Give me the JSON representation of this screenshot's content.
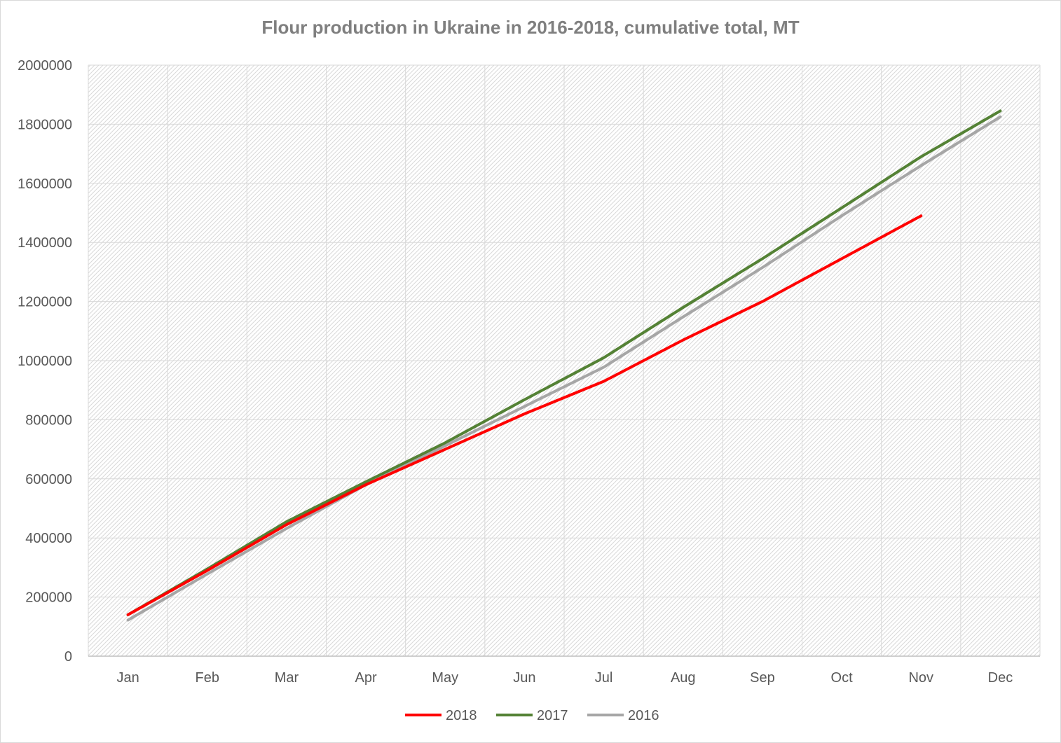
{
  "chart_data": {
    "type": "line",
    "title": "Flour production in Ukraine in 2016-2018, cumulative total, MT",
    "xlabel": "",
    "ylabel": "",
    "categories": [
      "Jan",
      "Feb",
      "Mar",
      "Apr",
      "May",
      "Jun",
      "Jul",
      "Aug",
      "Sep",
      "Oct",
      "Nov",
      "Dec"
    ],
    "ylim": [
      0,
      2000000
    ],
    "yticks": [
      "0",
      "200000",
      "400000",
      "600000",
      "800000",
      "1000000",
      "1200000",
      "1400000",
      "1600000",
      "1800000",
      "2000000"
    ],
    "grid": true,
    "legend_position": "bottom",
    "series": [
      {
        "name": "2018",
        "color": "#ff0000",
        "values": [
          140000,
          290000,
          445000,
          580000,
          700000,
          820000,
          930000,
          1070000,
          1200000,
          1345000,
          1490000,
          null
        ]
      },
      {
        "name": "2017",
        "color": "#548235",
        "values": [
          140000,
          295000,
          455000,
          590000,
          722000,
          868000,
          1010000,
          1180000,
          1345000,
          1517000,
          1690000,
          1845000
        ]
      },
      {
        "name": "2016",
        "color": "#a6a6a6",
        "values": [
          122000,
          278000,
          432000,
          580000,
          712000,
          845000,
          978000,
          1148000,
          1315000,
          1490000,
          1660000,
          1825000
        ]
      }
    ]
  }
}
